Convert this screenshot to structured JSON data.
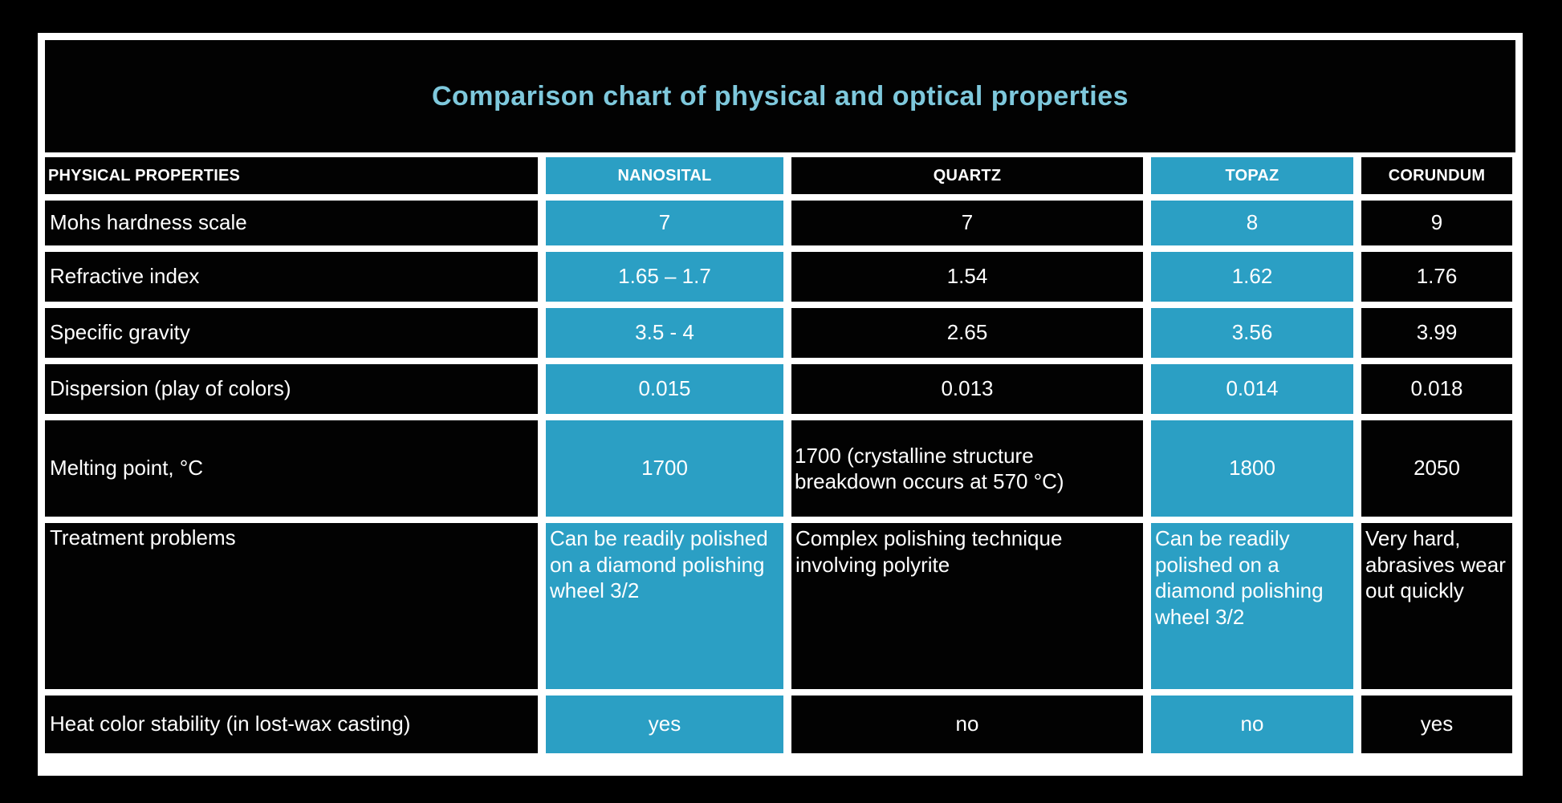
{
  "title": "Comparison chart of physical and optical properties",
  "colors": {
    "page_background": "#000000",
    "frame_border": "#FFFFFF",
    "cell_background": "#020202",
    "accent_teal": "#2B9FC4",
    "title_text": "#7EC8DC",
    "cell_text": "#FFFFFF"
  },
  "table": {
    "header": [
      "PHYSICAL PROPERTIES",
      "NANOSITAL",
      "QUARTZ",
      "TOPAZ",
      "CORUNDUM"
    ],
    "highlighted_columns": [
      "NANOSITAL",
      "TOPAZ"
    ],
    "rows": [
      {
        "label": "Mohs hardness scale",
        "values": [
          "7",
          "7",
          "8",
          "9"
        ]
      },
      {
        "label": "Refractive index",
        "values": [
          "1.65 – 1.7",
          "1.54",
          "1.62",
          "1.76"
        ]
      },
      {
        "label": "Specific gravity",
        "values": [
          "3.5 - 4",
          "2.65",
          "3.56",
          "3.99"
        ]
      },
      {
        "label": "Dispersion (play of colors)",
        "values": [
          "0.015",
          "0.013",
          "0.014",
          "0.018"
        ]
      },
      {
        "label": "Melting point, °C",
        "values": [
          "1700",
          "1700 (crystalline structure breakdown occurs at 570 °C)",
          "1800",
          "2050"
        ]
      },
      {
        "label": "Treatment problems",
        "values": [
          "Can be readily polished on a diamond polishing wheel 3/2",
          "Complex polishing technique involving polyrite",
          "Can be readily polished on a diamond polishing wheel 3/2",
          "Very hard, abrasives wear out quickly"
        ]
      },
      {
        "label": "Heat color stability (in lost-wax casting)",
        "values": [
          "yes",
          "no",
          "no",
          "yes"
        ]
      }
    ]
  },
  "chart_data": {
    "type": "table",
    "title": "Comparison chart of physical and optical properties",
    "columns": [
      "PHYSICAL PROPERTIES",
      "NANOSITAL",
      "QUARTZ",
      "TOPAZ",
      "CORUNDUM"
    ],
    "rows": [
      [
        "Mohs hardness scale",
        "7",
        "7",
        "8",
        "9"
      ],
      [
        "Refractive index",
        "1.65 – 1.7",
        "1.54",
        "1.62",
        "1.76"
      ],
      [
        "Specific gravity",
        "3.5 - 4",
        "2.65",
        "3.56",
        "3.99"
      ],
      [
        "Dispersion (play of colors)",
        "0.015",
        "0.013",
        "0.014",
        "0.018"
      ],
      [
        "Melting point, °C",
        "1700",
        "1700 (crystalline structure breakdown occurs at 570 °C)",
        "1800",
        "2050"
      ],
      [
        "Treatment problems",
        "Can be readily polished on a diamond polishing wheel 3/2",
        "Complex polishing technique involving polyrite",
        "Can be readily polished on a diamond polishing wheel 3/2",
        "Very hard, abrasives wear out quickly"
      ],
      [
        "Heat color stability (in lost-wax casting)",
        "yes",
        "no",
        "no",
        "yes"
      ]
    ],
    "layout_hints": {
      "highlighted_columns": [
        "NANOSITAL",
        "TOPAZ"
      ],
      "highlight_color": "#2B9FC4",
      "grid": "white gaps between black cells on black background"
    }
  }
}
